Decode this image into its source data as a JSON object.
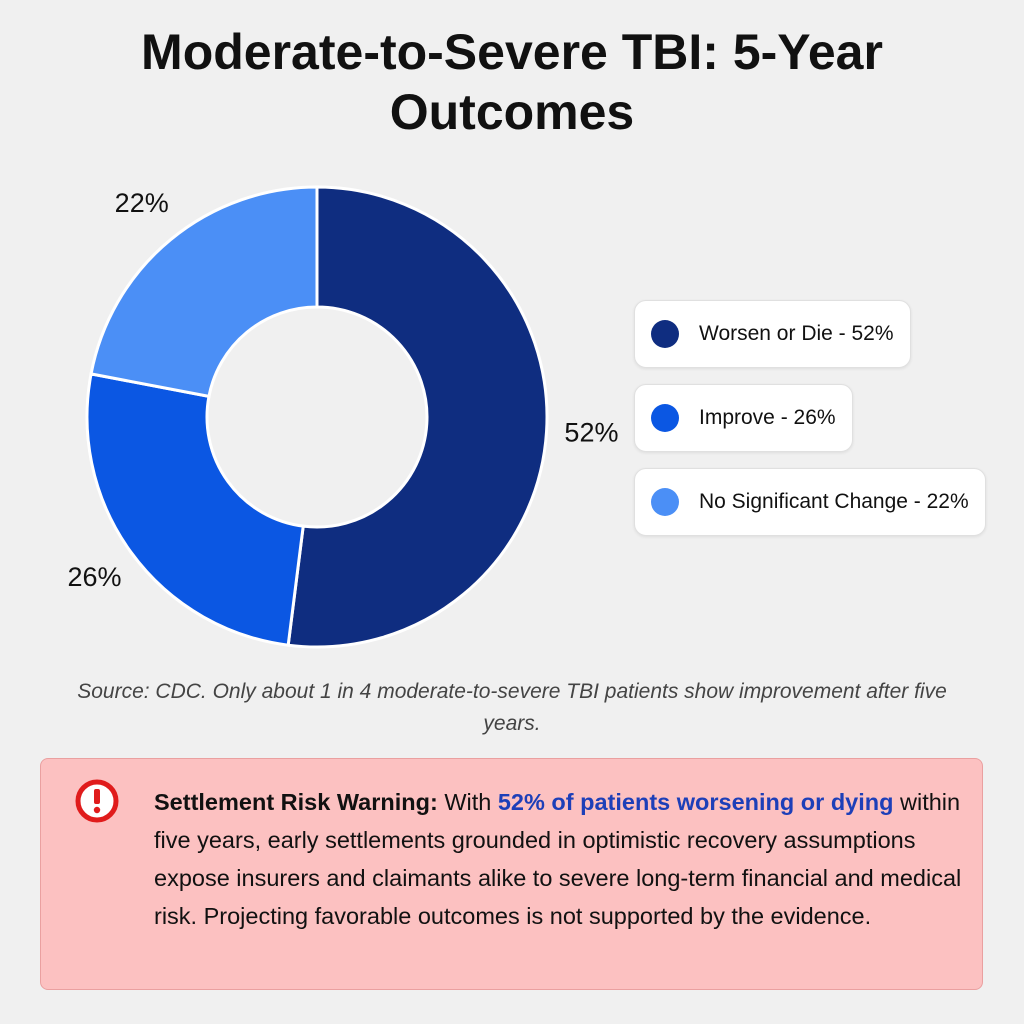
{
  "chart_data": {
    "type": "pie",
    "title": "Moderate-to-Severe TBI: 5-Year Outcomes",
    "categories": [
      "Worsen or Die - 52%",
      "Improve - 26%",
      "No Significant Change - 22%"
    ],
    "values": [
      52,
      26,
      22
    ],
    "value_labels": [
      "52%",
      "26%",
      "22%"
    ],
    "colors": [
      "#0f2d80",
      "#0b57e3",
      "#4b8ff6"
    ],
    "donut": true,
    "legend": "right",
    "note": "Source: CDC. Only about 1 in 4 moderate-to-severe TBI patients show improvement after five years."
  },
  "warning": {
    "title": "Settlement Risk Warning:",
    "text_before": "With",
    "highlight": "52% of patients worsening or dying",
    "text_after": "within five years, early settlements grounded in optimistic recovery assumptions expose insurers and claimants alike to severe long-term financial and medical risk. Projecting favorable outcomes is not supported by the evidence."
  }
}
